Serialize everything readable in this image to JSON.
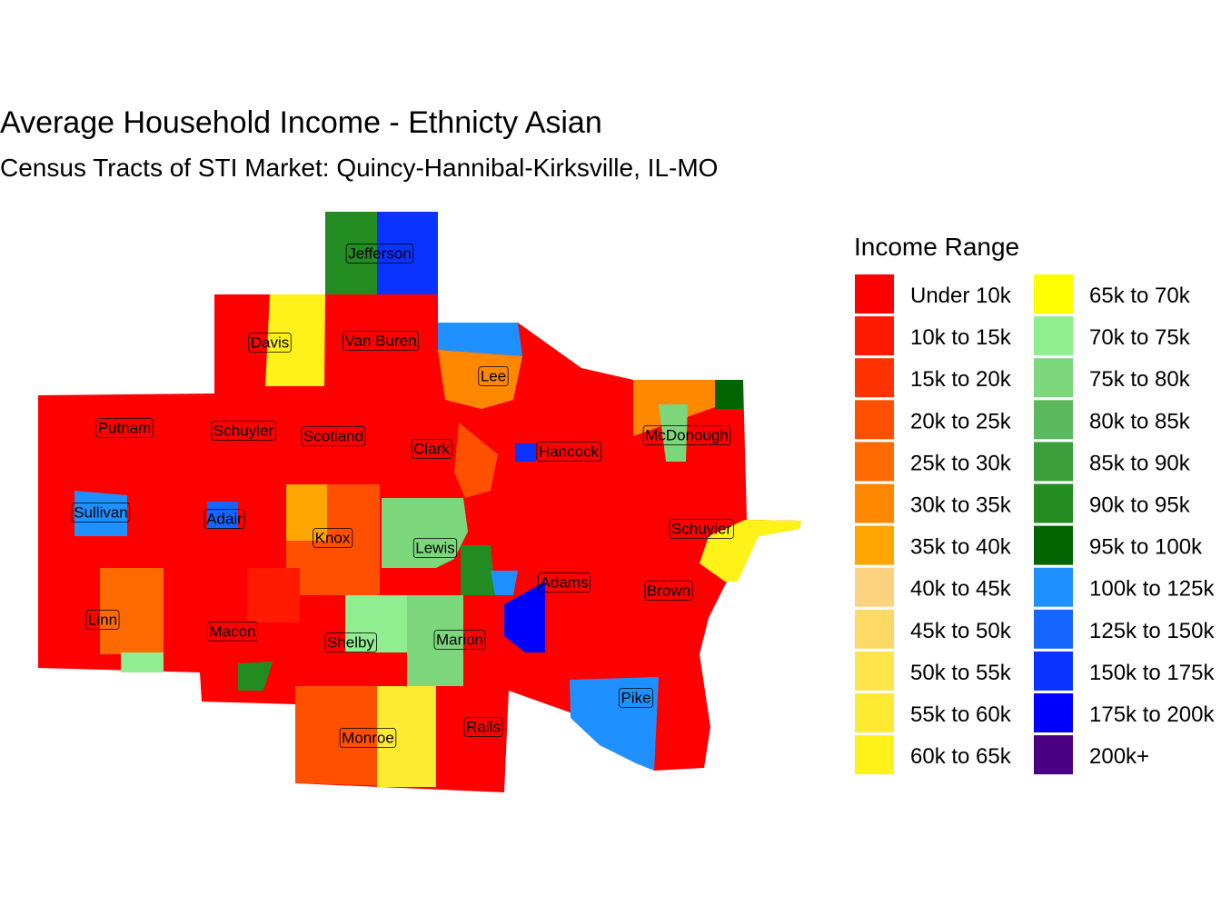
{
  "title": "Average Household Income - Ethnicty Asian",
  "subtitle": "Census Tracts of STI Market: Quincy-Hannibal-Kirksville, IL-MO",
  "legend": {
    "title": "Income Range",
    "items": [
      {
        "name": "Under 10k",
        "color": "#ff0000"
      },
      {
        "name": "10k to 15k",
        "color": "#ff1a00"
      },
      {
        "name": "15k to 20k",
        "color": "#ff3300"
      },
      {
        "name": "20k to 25k",
        "color": "#ff5000"
      },
      {
        "name": "25k to 30k",
        "color": "#ff6a00"
      },
      {
        "name": "30k to 35k",
        "color": "#ff8800"
      },
      {
        "name": "35k to 40k",
        "color": "#ffa500"
      },
      {
        "name": "40k to 45k",
        "color": "#ffd27f"
      },
      {
        "name": "45k to 50k",
        "color": "#ffd966"
      },
      {
        "name": "50k to 55k",
        "color": "#ffe44c"
      },
      {
        "name": "55k to 60k",
        "color": "#ffea33"
      },
      {
        "name": "60k to 65k",
        "color": "#fff21a"
      },
      {
        "name": "65k to 70k",
        "color": "#ffff00"
      },
      {
        "name": "70k to 75k",
        "color": "#90ee90"
      },
      {
        "name": "75k to 80k",
        "color": "#7cd67c"
      },
      {
        "name": "80k to 85k",
        "color": "#5cb85c"
      },
      {
        "name": "85k to 90k",
        "color": "#3a9e3a"
      },
      {
        "name": "90k to 95k",
        "color": "#228b22"
      },
      {
        "name": "95k to 100k",
        "color": "#006400"
      },
      {
        "name": "100k to 125k",
        "color": "#1e90ff"
      },
      {
        "name": "125k to 150k",
        "color": "#1466ff"
      },
      {
        "name": "150k to 175k",
        "color": "#0a33ff"
      },
      {
        "name": "175k to 200k",
        "color": "#0000ff"
      },
      {
        "name": "200k+",
        "color": "#4b0082"
      }
    ]
  },
  "counties": [
    "Jefferson",
    "Davis",
    "Van Buren",
    "Lee",
    "Putnam",
    "Schuyler",
    "Scotland",
    "Clark",
    "Hancock",
    "McDonough",
    "Sullivan",
    "Adair",
    "Knox",
    "Lewis",
    "Schuyler",
    "Adams",
    "Brown",
    "Linn",
    "Macon",
    "Shelby",
    "Marion",
    "Pike",
    "Monroe",
    "Ralls"
  ]
}
